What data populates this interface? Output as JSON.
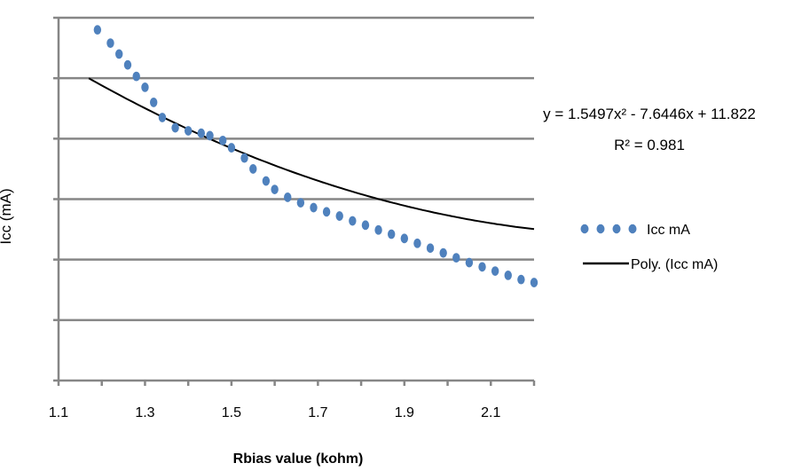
{
  "chart_data": {
    "type": "scatter",
    "title": "",
    "xlabel": "Rbias value (kohm)",
    "ylabel": "Icc (mA)",
    "xlim": [
      1.1,
      2.2
    ],
    "ylim": [
      0,
      6
    ],
    "x_ticks": [
      1.1,
      1.3,
      1.5,
      1.7,
      1.9,
      2.1
    ],
    "x_tick_labels": [
      "1.1",
      "1.3",
      "1.5",
      "1.7",
      "1.9",
      "2.1"
    ],
    "grid": "horizontal",
    "legend_position": "right",
    "series": [
      {
        "name": "Icc mA",
        "style": "dotted-markers",
        "color": "#4f81bd",
        "x": [
          1.19,
          1.22,
          1.24,
          1.26,
          1.28,
          1.3,
          1.32,
          1.34,
          1.37,
          1.4,
          1.43,
          1.45,
          1.48,
          1.5,
          1.53,
          1.55,
          1.58,
          1.6,
          1.63,
          1.66,
          1.69,
          1.72,
          1.75,
          1.78,
          1.81,
          1.84,
          1.87,
          1.9,
          1.93,
          1.96,
          1.99,
          2.02,
          2.05,
          2.08,
          2.11,
          2.14,
          2.17,
          2.2
        ],
        "y": [
          5.8,
          5.58,
          5.4,
          5.22,
          5.03,
          4.85,
          4.6,
          4.35,
          4.18,
          4.13,
          4.09,
          4.05,
          3.97,
          3.85,
          3.68,
          3.5,
          3.3,
          3.16,
          3.03,
          2.94,
          2.86,
          2.79,
          2.72,
          2.64,
          2.57,
          2.49,
          2.42,
          2.35,
          2.27,
          2.19,
          2.11,
          2.03,
          1.95,
          1.88,
          1.81,
          1.74,
          1.67,
          1.62
        ]
      },
      {
        "name": "Poly. (Icc mA)",
        "style": "line",
        "color": "#000000",
        "fit": {
          "a": 1.5497,
          "b": -7.6446,
          "c": 11.822
        },
        "x_range": [
          1.17,
          2.2
        ]
      }
    ],
    "annotations": {
      "equation": "y = 1.5497x² - 7.6446x + 11.822",
      "r_squared": "R² = 0.981"
    }
  }
}
